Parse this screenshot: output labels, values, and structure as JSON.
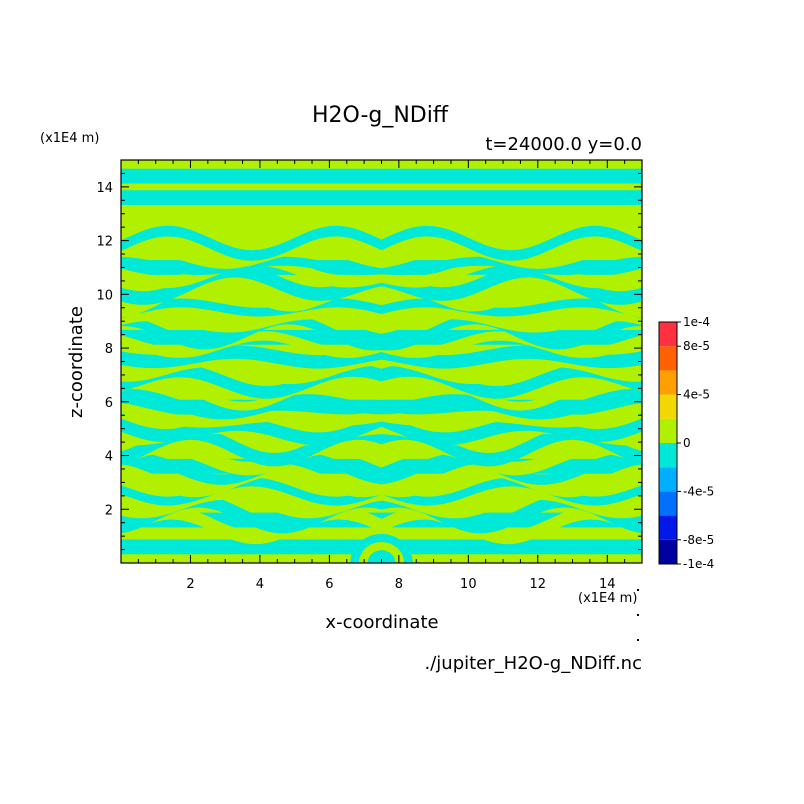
{
  "chart_data": {
    "type": "heatmap",
    "title": "H2O-g_NDiff",
    "subtitle": "t=24000.0 y=0.0",
    "xlabel": "x-coordinate",
    "ylabel": "z-coordinate",
    "x_unit": "(x1E4 m)",
    "y_unit": "(x1E4 m)",
    "xlim": [
      0,
      15
    ],
    "ylim": [
      0,
      15
    ],
    "x_ticks": [
      2,
      4,
      6,
      8,
      10,
      12,
      14
    ],
    "y_ticks": [
      2,
      4,
      6,
      8,
      10,
      12,
      14
    ],
    "colorbar": {
      "levels": [
        -0.0001,
        -8e-05,
        -6e-05,
        -4e-05,
        -2e-05,
        0,
        2e-05,
        4e-05,
        6e-05,
        8e-05,
        0.0001
      ],
      "colors": [
        "#0000a0",
        "#0018e8",
        "#0070ff",
        "#00b0ff",
        "#00e8d8",
        "#b0f000",
        "#f0d800",
        "#ffa000",
        "#ff6000",
        "#ff3040"
      ],
      "tick_values": [
        0.0001,
        8e-05,
        4e-05,
        0,
        -4e-05,
        -8e-05,
        -0.0001
      ],
      "tick_labels": [
        "1e-4",
        "8e-5",
        "4e-5",
        "0",
        "-4e-5",
        "-8e-5",
        "-1e-4"
      ]
    },
    "field_colors": {
      "positive": "#b0f000",
      "negative": "#00e8d8"
    },
    "field_bands_z": [
      {
        "z": 14.4,
        "sign": "negative"
      },
      {
        "z": 13.6,
        "sign": "negative"
      },
      {
        "z": 12.2,
        "sign": "positive"
      },
      {
        "z": 11.0,
        "sign": "negative"
      },
      {
        "z": 9.8,
        "sign": "positive"
      },
      {
        "z": 8.4,
        "sign": "negative"
      },
      {
        "z": 7.0,
        "sign": "positive"
      },
      {
        "z": 5.8,
        "sign": "negative"
      },
      {
        "z": 4.8,
        "sign": "positive"
      },
      {
        "z": 3.6,
        "sign": "negative"
      },
      {
        "z": 2.6,
        "sign": "positive"
      },
      {
        "z": 1.6,
        "sign": "negative"
      },
      {
        "z": 0.6,
        "sign": "negative"
      }
    ]
  },
  "footer": {
    "filename": "./jupiter_H2O-g_NDiff.nc"
  }
}
